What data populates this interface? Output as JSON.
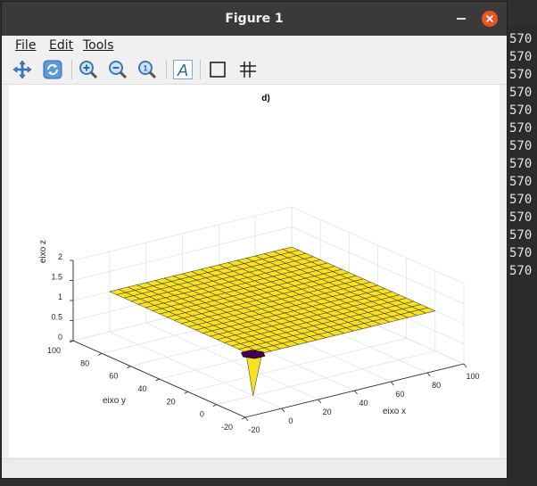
{
  "window": {
    "title": "Figure 1"
  },
  "menu": {
    "file": "File",
    "edit": "Edit",
    "tools": "Tools"
  },
  "toolbar": {
    "icons": [
      "pan-icon",
      "rotate-icon",
      "zoom-in-icon",
      "zoom-out-icon",
      "zoom-reset-icon",
      "text-annotation-icon",
      "axes-box-icon",
      "grid-icon"
    ],
    "text_tool_label": "A"
  },
  "background_terminal": {
    "lines": [
      "570",
      "570",
      "570",
      "570",
      "570",
      "570",
      "570",
      "570",
      "570",
      "570",
      "570",
      "570",
      "570",
      "570"
    ]
  },
  "chart_data": {
    "type": "surface",
    "title": "d)",
    "xlabel": "eixo x",
    "ylabel": "eixo y",
    "zlabel": "eixo z",
    "xlim": [
      -20,
      100
    ],
    "ylim": [
      -20,
      100
    ],
    "zlim": [
      0,
      2
    ],
    "x_ticks": [
      "-20",
      "0",
      "20",
      "40",
      "60",
      "80",
      "100"
    ],
    "y_ticks": [
      "-20",
      "0",
      "20",
      "40",
      "60",
      "80",
      "100"
    ],
    "z_ticks": [
      "0",
      "0.5",
      "1",
      "1.5",
      "2"
    ],
    "grid": true,
    "surface_value": 1,
    "spike": {
      "x": 0,
      "y": 0,
      "z": 0
    },
    "colors": {
      "surface": "#f9e21d",
      "spike_top": "#440154"
    }
  }
}
